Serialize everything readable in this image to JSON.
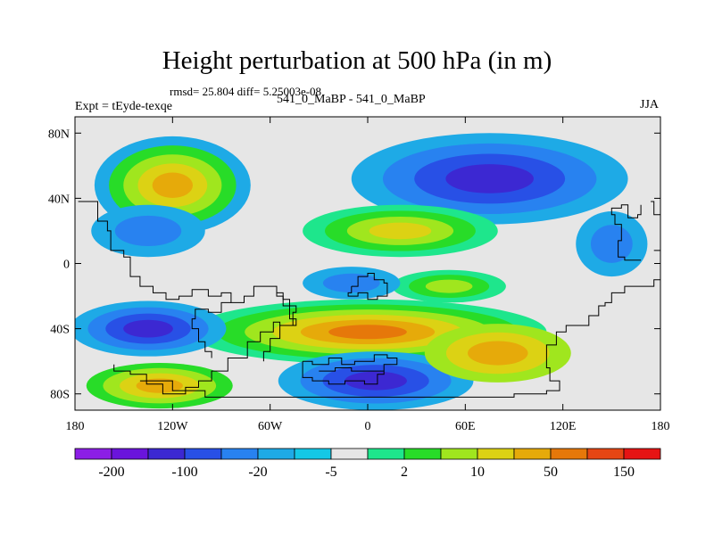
{
  "chart_data": {
    "type": "heatmap",
    "title": "Height perturbation at 500 hPa (in m)",
    "stats_line": "rmsd= 25.804 diff= 5.25003e-08",
    "left_label": "Expt = tEyde-texqe",
    "center_label": "541_0_MaBP - 541_0_MaBP",
    "right_label": "JJA",
    "xlim": [
      -180,
      180
    ],
    "ylim": [
      -90,
      90
    ],
    "x_ticks": [
      {
        "value": -180,
        "label": "180"
      },
      {
        "value": -120,
        "label": "120W"
      },
      {
        "value": -60,
        "label": "60W"
      },
      {
        "value": 0,
        "label": "0"
      },
      {
        "value": 60,
        "label": "60E"
      },
      {
        "value": 120,
        "label": "120E"
      },
      {
        "value": 180,
        "label": "180"
      }
    ],
    "y_ticks": [
      {
        "value": 80,
        "label": "80N"
      },
      {
        "value": 40,
        "label": "40N"
      },
      {
        "value": 0,
        "label": "0"
      },
      {
        "value": -40,
        "label": "40S"
      },
      {
        "value": -80,
        "label": "80S"
      }
    ],
    "colorbar": {
      "colors": [
        "#8c1ee6",
        "#6a14dc",
        "#3c28d2",
        "#2850e6",
        "#2882f0",
        "#1eaae6",
        "#14c8e6",
        "#e6e6e6",
        "#1ee68c",
        "#28dc28",
        "#a0e61e",
        "#dcd214",
        "#e6aa0a",
        "#e6780a",
        "#e64614",
        "#e61414"
      ],
      "labels": [
        {
          "boundary": 1,
          "text": "-200"
        },
        {
          "boundary": 3,
          "text": "-100"
        },
        {
          "boundary": 5,
          "text": "-20"
        },
        {
          "boundary": 7,
          "text": "-5"
        },
        {
          "boundary": 9,
          "text": "2"
        },
        {
          "boundary": 11,
          "text": "10"
        },
        {
          "boundary": 13,
          "text": "50"
        },
        {
          "boundary": 15,
          "text": "150"
        }
      ]
    },
    "field": {
      "background": "#e6e6e6",
      "features": [
        {
          "name": "nh-high-west",
          "levels": [
            "#1eaae6",
            "#28dc28",
            "#a0e61e",
            "#dcd214",
            "#e6aa0a"
          ],
          "cx": -120,
          "cy": 48,
          "rx": 48,
          "ry": 30
        },
        {
          "name": "nh-low-east",
          "levels": [
            "#1eaae6",
            "#2882f0",
            "#2850e6",
            "#3c28d2"
          ],
          "cx": 75,
          "cy": 52,
          "rx": 85,
          "ry": 28
        },
        {
          "name": "nh-low-west",
          "levels": [
            "#1eaae6",
            "#2882f0"
          ],
          "cx": -135,
          "cy": 20,
          "rx": 35,
          "ry": 16
        },
        {
          "name": "nh-low-eastmost",
          "levels": [
            "#1eaae6",
            "#2882f0"
          ],
          "cx": 150,
          "cy": 12,
          "rx": 22,
          "ry": 20
        },
        {
          "name": "midlat-high",
          "levels": [
            "#1ee68c",
            "#28dc28",
            "#a0e61e",
            "#dcd214"
          ],
          "cx": 20,
          "cy": 20,
          "rx": 60,
          "ry": 16
        },
        {
          "name": "tropic-high",
          "levels": [
            "#1ee68c",
            "#28dc28",
            "#a0e61e"
          ],
          "cx": 50,
          "cy": -14,
          "rx": 35,
          "ry": 10
        },
        {
          "name": "tropic-low",
          "levels": [
            "#1eaae6",
            "#2882f0"
          ],
          "cx": -10,
          "cy": -12,
          "rx": 30,
          "ry": 10
        },
        {
          "name": "sh-high-band",
          "levels": [
            "#1ee68c",
            "#28dc28",
            "#a0e61e",
            "#dcd214",
            "#e6aa0a",
            "#e6780a"
          ],
          "cx": 0,
          "cy": -42,
          "rx": 110,
          "ry": 20
        },
        {
          "name": "sh-low-west",
          "levels": [
            "#1eaae6",
            "#2882f0",
            "#2850e6",
            "#3c28d2"
          ],
          "cx": -135,
          "cy": -40,
          "rx": 48,
          "ry": 17
        },
        {
          "name": "sh-high-southwest",
          "levels": [
            "#28dc28",
            "#a0e61e",
            "#dcd214",
            "#e6aa0a"
          ],
          "cx": -128,
          "cy": -75,
          "rx": 45,
          "ry": 14
        },
        {
          "name": "sh-low-south",
          "levels": [
            "#1eaae6",
            "#2882f0",
            "#2850e6",
            "#3c28d2"
          ],
          "cx": 5,
          "cy": -72,
          "rx": 60,
          "ry": 18
        },
        {
          "name": "sh-high-east",
          "levels": [
            "#a0e61e",
            "#dcd214",
            "#e6aa0a"
          ],
          "cx": 80,
          "cy": -55,
          "rx": 45,
          "ry": 18
        }
      ]
    }
  }
}
